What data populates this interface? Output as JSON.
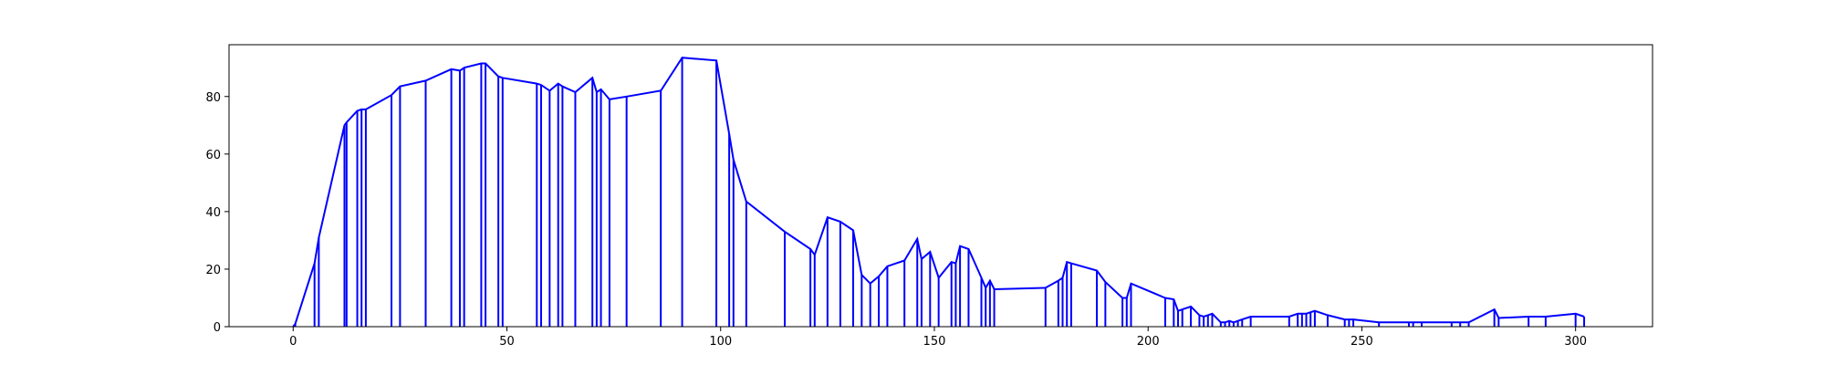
{
  "chart_data": {
    "type": "line",
    "title": "",
    "xlabel": "",
    "ylabel": "",
    "xlim": [
      -15,
      318
    ],
    "ylim": [
      0,
      98
    ],
    "xticks": [
      0,
      50,
      100,
      150,
      200,
      250,
      300
    ],
    "yticks": [
      0,
      20,
      40,
      60,
      80
    ],
    "grid": false,
    "legend": "none",
    "series_color": "#0000ff",
    "series": [
      {
        "style": "line with vertical stems to y=0",
        "x": [
          0,
          0.5,
          5,
          6,
          12,
          12.5,
          15,
          16,
          17,
          23,
          25,
          31,
          37,
          39,
          40,
          44,
          45,
          48,
          49,
          57,
          58,
          60,
          62,
          63,
          66,
          70,
          71,
          72,
          74,
          78,
          86,
          91,
          99,
          102,
          103,
          106,
          115,
          121,
          122,
          125,
          128,
          131,
          133,
          135,
          137,
          139,
          143,
          146,
          147,
          149,
          151,
          154,
          155,
          156,
          158,
          161,
          162,
          163,
          164,
          176,
          179,
          180,
          181,
          182,
          188,
          190,
          194,
          195,
          196,
          204,
          206,
          207,
          208,
          210,
          212,
          213,
          214,
          215,
          217,
          218,
          219,
          220,
          221,
          222,
          224,
          233,
          235,
          236,
          237,
          238,
          239,
          242,
          246,
          247,
          248,
          254,
          261,
          262,
          264,
          271,
          273,
          275,
          281,
          282,
          289,
          293,
          300,
          302
        ],
        "y": [
          0,
          1,
          22,
          31,
          70,
          71,
          75,
          75.5,
          75.5,
          80.5,
          83.5,
          85.5,
          89.5,
          89,
          90,
          91.5,
          91.5,
          87,
          86.5,
          84.5,
          84,
          82,
          84.5,
          83.5,
          81.5,
          86.5,
          81.5,
          82.5,
          79,
          80,
          82,
          93.5,
          92.5,
          67,
          58,
          43.5,
          33,
          27,
          25,
          38,
          36.5,
          33.5,
          18,
          15,
          17.5,
          21,
          23,
          30.5,
          23.5,
          26,
          17,
          22.5,
          22,
          28,
          27,
          17,
          13.5,
          16,
          13,
          13.5,
          16,
          17,
          22.5,
          22,
          19.5,
          15.5,
          10,
          10,
          15,
          10,
          9.5,
          5.5,
          6,
          7,
          4,
          3.5,
          4,
          4.5,
          1.5,
          1.5,
          2,
          1.5,
          2,
          2.5,
          3.5,
          3.5,
          4.5,
          4.5,
          4.5,
          5,
          5.5,
          4,
          2.5,
          2.5,
          2.5,
          1.5,
          1.5,
          1.5,
          1.5,
          1.5,
          1.5,
          1.5,
          6,
          3,
          3.5,
          3.5,
          4.5,
          3.5
        ]
      }
    ]
  }
}
